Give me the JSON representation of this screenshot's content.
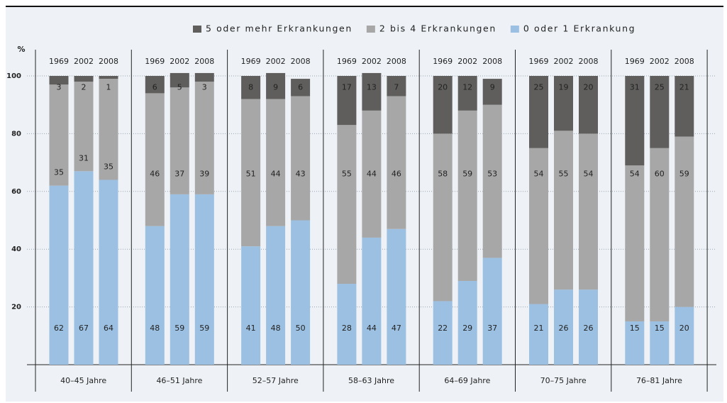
{
  "chart_data": {
    "type": "stacked-bar",
    "y_label": "%",
    "groups": [
      "40–45 Jahre",
      "46–51 Jahre",
      "52–57 Jahre",
      "58–63 Jahre",
      "64–69 Jahre",
      "70–75 Jahre",
      "76–81 Jahre"
    ],
    "categories": [
      "1969",
      "2002",
      "2008",
      "1969",
      "2002",
      "2008",
      "1969",
      "2002",
      "2008",
      "1969",
      "2002",
      "2008",
      "1969",
      "2002",
      "2008",
      "1969",
      "2002",
      "2008",
      "1969",
      "2002",
      "2008"
    ],
    "series": [
      {
        "name": "0 oder 1 Erkrankung",
        "color": "#9cc0e1",
        "label_color": "#2f7cc0",
        "legend_color": "#8fb9e0",
        "values": [
          62,
          67,
          64,
          48,
          59,
          59,
          41,
          48,
          50,
          28,
          44,
          47,
          22,
          29,
          37,
          21,
          26,
          26,
          15,
          15,
          20
        ]
      },
      {
        "name": "2 bis 4 Erkrankungen",
        "color": "#a7a7a7",
        "label_color": "#2a2a2a",
        "legend_color": "#a8a8a8",
        "values": [
          35,
          31,
          35,
          46,
          37,
          39,
          51,
          44,
          43,
          55,
          44,
          46,
          58,
          59,
          53,
          54,
          55,
          54,
          54,
          60,
          59
        ]
      },
      {
        "name": "5 oder mehr Erkrankungen",
        "color": "#5f5e5c",
        "label_color": "#f0f0f0",
        "legend_color": "#555555",
        "values": [
          3,
          2,
          1,
          6,
          5,
          3,
          8,
          9,
          6,
          17,
          13,
          7,
          20,
          12,
          9,
          25,
          19,
          20,
          31,
          25,
          21
        ]
      }
    ],
    "ylim": [
      0,
      100
    ],
    "yticks": [
      20,
      40,
      60,
      80,
      100
    ],
    "grid": true,
    "legend": "top-right"
  }
}
